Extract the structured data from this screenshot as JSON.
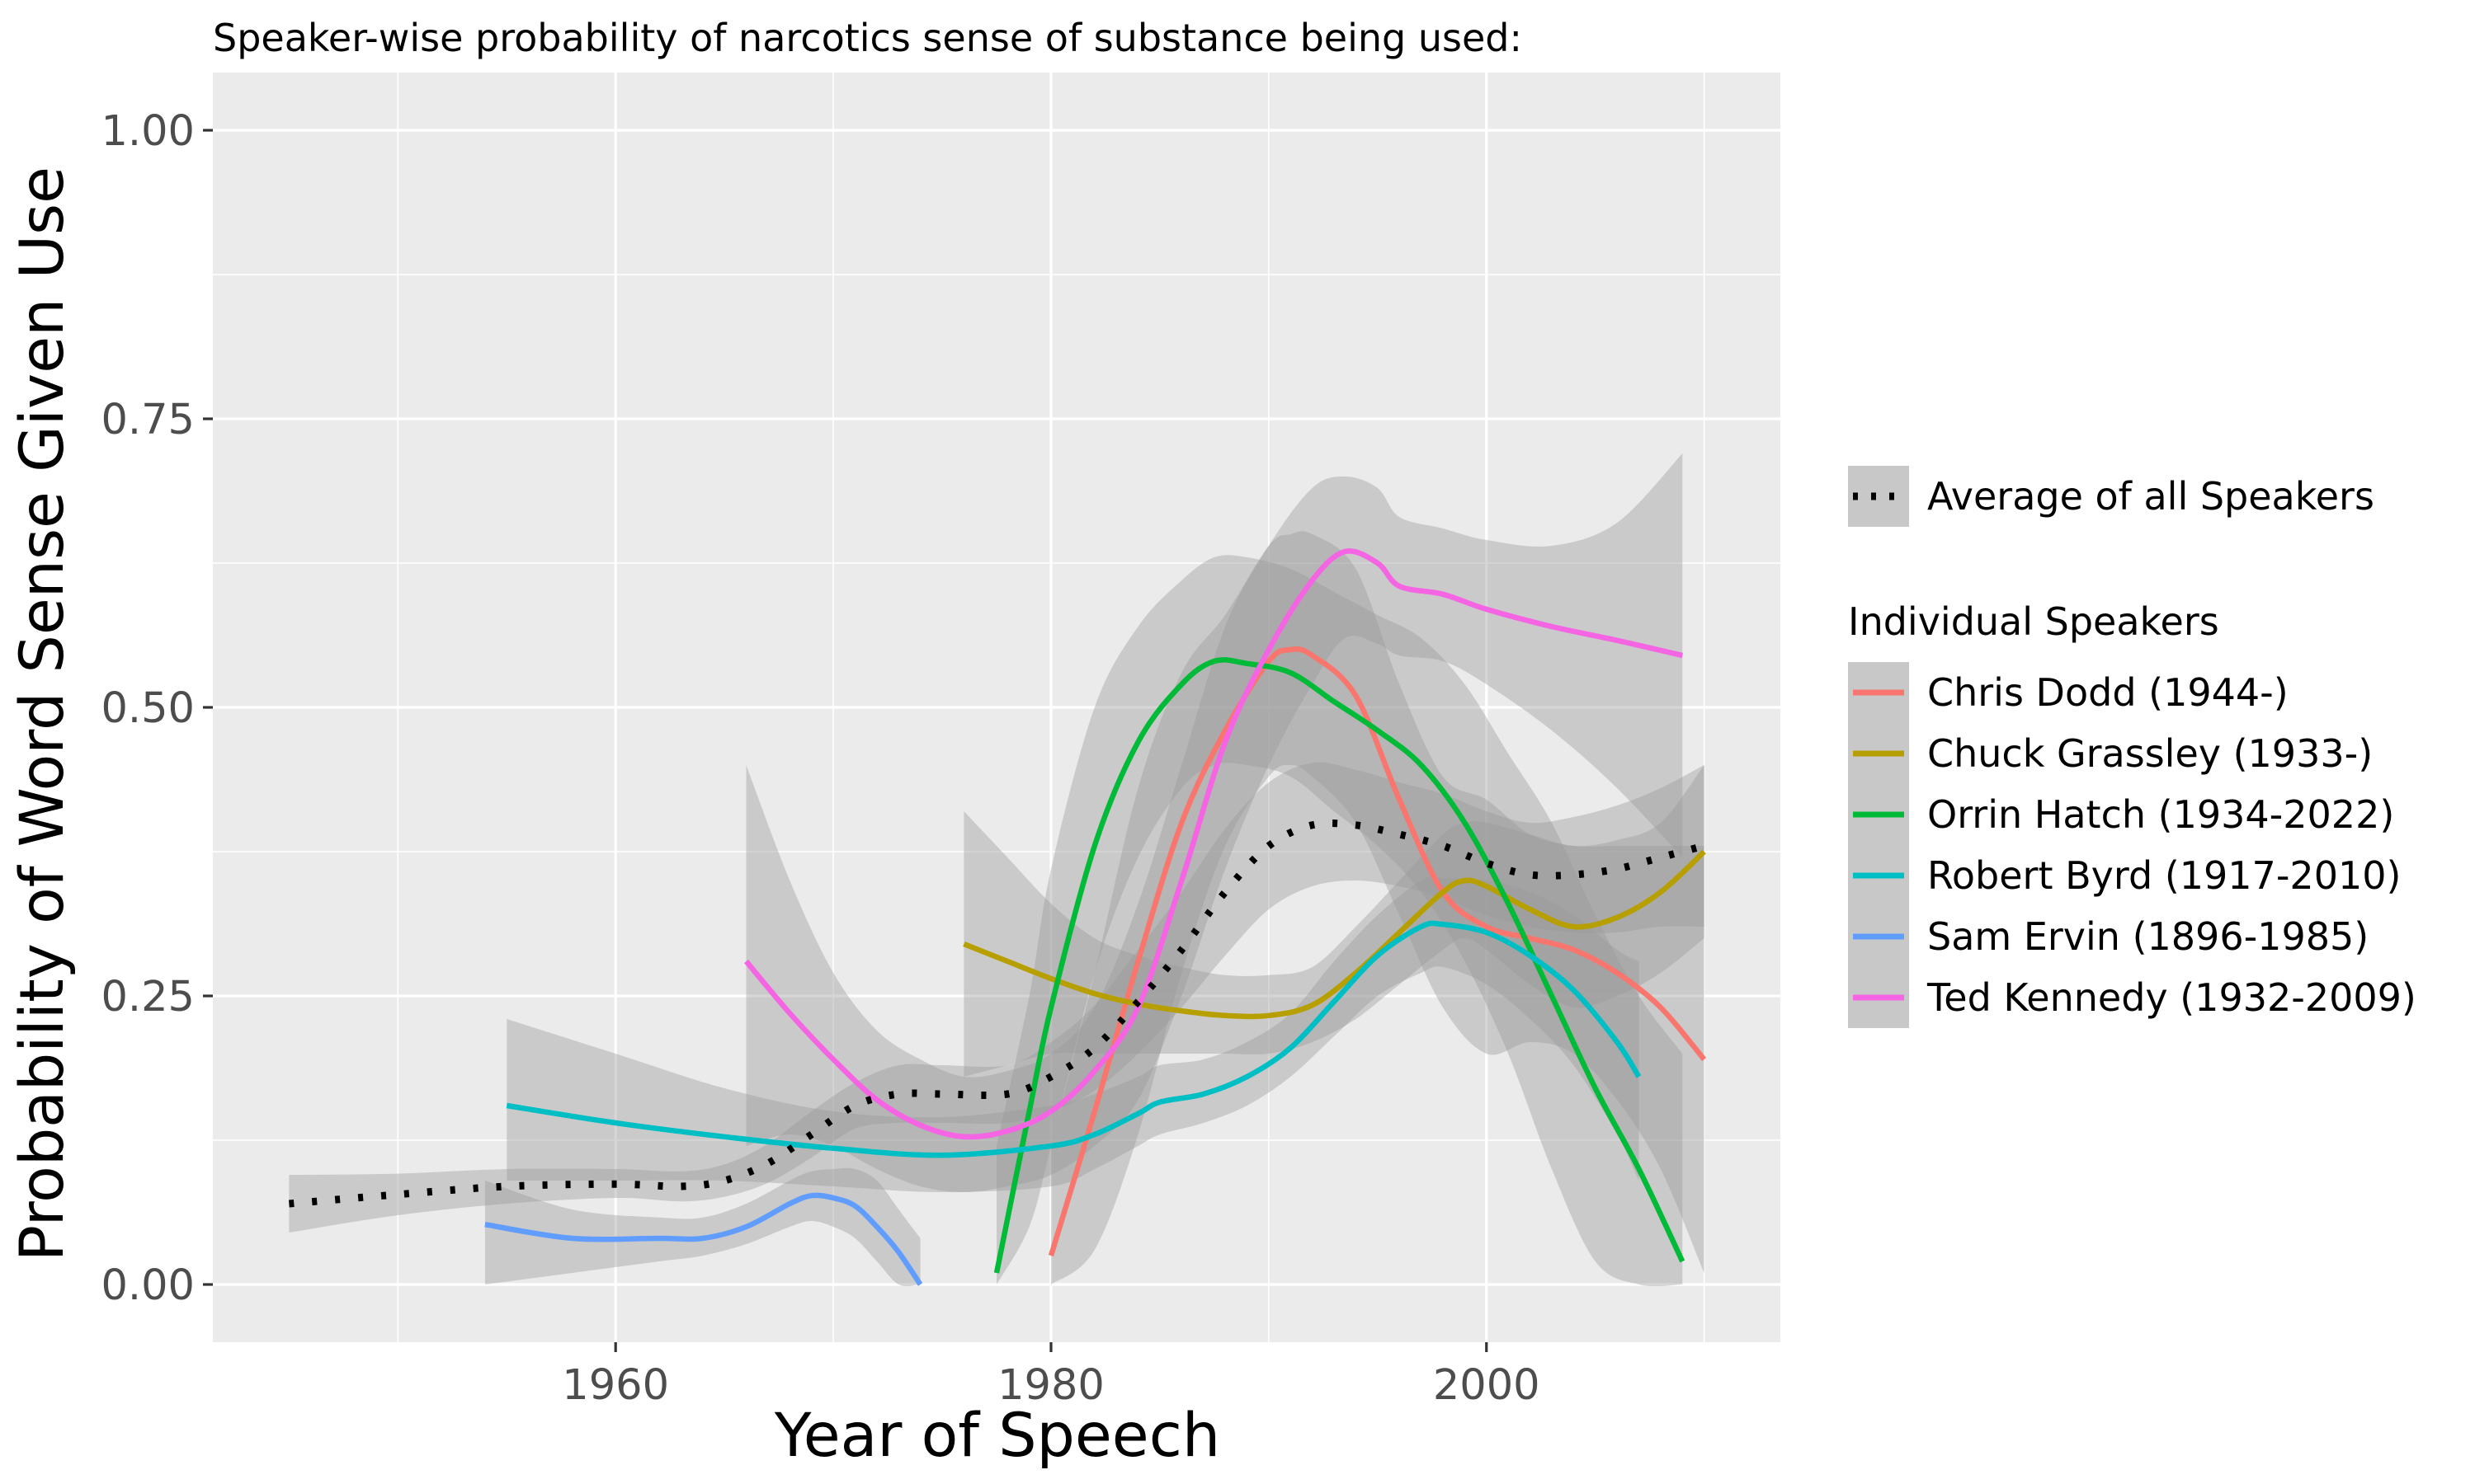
{
  "chart_data": {
    "type": "line",
    "title": "Speaker-wise probability of narcotics sense of substance being used:",
    "xlabel": "Year of Speech",
    "ylabel": "Probability of Word Sense Given Use",
    "xlim": [
      1941.5,
      2013.5
    ],
    "ylim": [
      -0.05,
      1.05
    ],
    "x_ticks": [
      1960,
      1980,
      2000
    ],
    "x_tick_labels": [
      "1960",
      "1980",
      "2000"
    ],
    "y_ticks": [
      0,
      0.25,
      0.5,
      0.75,
      1.0
    ],
    "y_tick_labels": [
      "0.00",
      "0.25",
      "0.50",
      "0.75",
      "1.00"
    ],
    "grid": true,
    "legend_position": "right",
    "legend": {
      "average_label": "Average of all Speakers",
      "individual_title": "Individual Speakers"
    },
    "average": {
      "name": "Average of all Speakers",
      "color": "#000000",
      "x": [
        1945,
        1950,
        1955,
        1960,
        1963,
        1965,
        1967,
        1969,
        1971,
        1973,
        1975,
        1978,
        1980,
        1982,
        1984,
        1986,
        1988,
        1990,
        1992,
        1994,
        1996,
        1998,
        2000,
        2002,
        2004,
        2006,
        2008,
        2010
      ],
      "y": [
        0.07,
        0.078,
        0.085,
        0.087,
        0.085,
        0.09,
        0.105,
        0.13,
        0.155,
        0.165,
        0.165,
        0.165,
        0.18,
        0.205,
        0.245,
        0.29,
        0.34,
        0.38,
        0.398,
        0.398,
        0.39,
        0.38,
        0.365,
        0.355,
        0.355,
        0.36,
        0.37,
        0.38
      ],
      "band_lower": [
        0.045,
        0.06,
        0.07,
        0.075,
        0.072,
        0.076,
        0.088,
        0.11,
        0.135,
        0.14,
        0.14,
        0.14,
        0.15,
        0.168,
        0.2,
        0.24,
        0.285,
        0.325,
        0.345,
        0.35,
        0.345,
        0.335,
        0.32,
        0.31,
        0.305,
        0.305,
        0.31,
        0.31
      ],
      "band_upper": [
        0.095,
        0.096,
        0.1,
        0.1,
        0.098,
        0.104,
        0.122,
        0.15,
        0.175,
        0.19,
        0.19,
        0.19,
        0.21,
        0.242,
        0.29,
        0.34,
        0.395,
        0.435,
        0.452,
        0.446,
        0.435,
        0.425,
        0.41,
        0.4,
        0.405,
        0.415,
        0.43,
        0.45
      ]
    },
    "series": [
      {
        "name": "Chris Dodd (1944-)",
        "color": "#F8766D",
        "x": [
          1980,
          1982,
          1984,
          1986,
          1988,
          1990,
          1991,
          1992,
          1994,
          1996,
          1998,
          2000,
          2002,
          2004,
          2006,
          2008,
          2010
        ],
        "y": [
          0.025,
          0.15,
          0.28,
          0.4,
          0.48,
          0.54,
          0.55,
          0.545,
          0.51,
          0.42,
          0.34,
          0.31,
          0.3,
          0.29,
          0.27,
          0.24,
          0.195
        ],
        "band_lower": [
          0.0,
          0.03,
          0.13,
          0.27,
          0.38,
          0.44,
          0.45,
          0.44,
          0.4,
          0.32,
          0.24,
          0.2,
          0.21,
          0.2,
          0.16,
          0.1,
          0.01
        ],
        "band_upper": [
          0.12,
          0.27,
          0.43,
          0.53,
          0.58,
          0.64,
          0.65,
          0.65,
          0.62,
          0.52,
          0.44,
          0.42,
          0.39,
          0.38,
          0.38,
          0.38,
          0.38
        ]
      },
      {
        "name": "Chuck Grassley (1933-)",
        "color": "#B79F00",
        "x": [
          1976,
          1978,
          1980,
          1982,
          1984,
          1986,
          1988,
          1990,
          1992,
          1994,
          1996,
          1998,
          1999,
          2000,
          2002,
          2004,
          2006,
          2008,
          2010
        ],
        "y": [
          0.295,
          0.28,
          0.265,
          0.252,
          0.243,
          0.237,
          0.233,
          0.233,
          0.242,
          0.27,
          0.305,
          0.34,
          0.35,
          0.345,
          0.325,
          0.31,
          0.318,
          0.34,
          0.375
        ],
        "band_lower": [
          0.18,
          0.19,
          0.2,
          0.2,
          0.2,
          0.2,
          0.2,
          0.2,
          0.21,
          0.23,
          0.26,
          0.29,
          0.3,
          0.29,
          0.26,
          0.24,
          0.25,
          0.27,
          0.3
        ],
        "band_upper": [
          0.41,
          0.37,
          0.33,
          0.3,
          0.285,
          0.275,
          0.268,
          0.268,
          0.275,
          0.31,
          0.35,
          0.39,
          0.4,
          0.4,
          0.39,
          0.38,
          0.385,
          0.4,
          0.45
        ]
      },
      {
        "name": "Orrin Hatch (1934-2022)",
        "color": "#00BA38",
        "x": [
          1977.5,
          1979,
          1980,
          1982,
          1984,
          1986,
          1987.5,
          1989,
          1991,
          1993,
          1995,
          1997,
          1999,
          2001,
          2003,
          2005,
          2007,
          2009
        ],
        "y": [
          0.01,
          0.15,
          0.24,
          0.38,
          0.47,
          0.52,
          0.54,
          0.538,
          0.53,
          0.505,
          0.48,
          0.45,
          0.4,
          0.33,
          0.25,
          0.17,
          0.1,
          0.02
        ],
        "band_lower": [
          0.0,
          0.05,
          0.12,
          0.27,
          0.37,
          0.43,
          0.45,
          0.45,
          0.44,
          0.41,
          0.38,
          0.34,
          0.28,
          0.2,
          0.1,
          0.02,
          0.0,
          0.0
        ],
        "band_upper": [
          0.12,
          0.25,
          0.36,
          0.5,
          0.57,
          0.61,
          0.63,
          0.63,
          0.62,
          0.6,
          0.58,
          0.56,
          0.52,
          0.46,
          0.4,
          0.32,
          0.25,
          0.2
        ]
      },
      {
        "name": "Robert Byrd (1917-2010)",
        "color": "#00BFC4",
        "x": [
          1955,
          1960,
          1965,
          1970,
          1975,
          1980,
          1982,
          1984,
          1985,
          1987,
          1989,
          1991,
          1993,
          1995,
          1997,
          1998,
          2000,
          2002,
          2004,
          2006,
          2007
        ],
        "y": [
          0.155,
          0.14,
          0.128,
          0.118,
          0.112,
          0.12,
          0.13,
          0.148,
          0.158,
          0.165,
          0.18,
          0.205,
          0.245,
          0.285,
          0.31,
          0.312,
          0.305,
          0.285,
          0.255,
          0.21,
          0.18
        ],
        "band_lower": [
          0.09,
          0.09,
          0.09,
          0.085,
          0.08,
          0.085,
          0.1,
          0.12,
          0.13,
          0.14,
          0.155,
          0.18,
          0.215,
          0.25,
          0.27,
          0.275,
          0.26,
          0.23,
          0.19,
          0.13,
          0.09
        ],
        "band_upper": [
          0.23,
          0.2,
          0.17,
          0.15,
          0.145,
          0.155,
          0.165,
          0.18,
          0.19,
          0.195,
          0.21,
          0.235,
          0.28,
          0.32,
          0.35,
          0.352,
          0.35,
          0.34,
          0.32,
          0.29,
          0.28
        ]
      },
      {
        "name": "Sam Ervin (1896-1985)",
        "color": "#619CFF",
        "x": [
          1954,
          1958,
          1962,
          1964,
          1966,
          1968,
          1969,
          1970,
          1971,
          1972,
          1973,
          1974
        ],
        "y": [
          0.052,
          0.04,
          0.04,
          0.04,
          0.05,
          0.07,
          0.077,
          0.075,
          0.068,
          0.05,
          0.028,
          0.0
        ],
        "band_lower": [
          0.0,
          0.01,
          0.02,
          0.025,
          0.035,
          0.05,
          0.055,
          0.05,
          0.04,
          0.02,
          0.0,
          0.0
        ],
        "band_upper": [
          0.09,
          0.065,
          0.058,
          0.058,
          0.07,
          0.09,
          0.098,
          0.1,
          0.1,
          0.09,
          0.065,
          0.04
        ]
      },
      {
        "name": "Ted Kennedy (1932-2009)",
        "color": "#F564E3",
        "x": [
          1966,
          1968,
          1970,
          1972,
          1974,
          1976,
          1978,
          1980,
          1982,
          1984,
          1986,
          1988,
          1990,
          1992,
          1993.5,
          1995,
          1996,
          1998,
          2000,
          2003,
          2006,
          2009
        ],
        "y": [
          0.28,
          0.235,
          0.195,
          0.16,
          0.138,
          0.128,
          0.133,
          0.15,
          0.185,
          0.24,
          0.35,
          0.47,
          0.55,
          0.61,
          0.635,
          0.625,
          0.605,
          0.598,
          0.585,
          0.57,
          0.558,
          0.545
        ],
        "band_lower": [
          0.12,
          0.13,
          0.12,
          0.1,
          0.085,
          0.08,
          0.085,
          0.095,
          0.12,
          0.16,
          0.25,
          0.36,
          0.45,
          0.52,
          0.56,
          0.555,
          0.545,
          0.54,
          0.52,
          0.48,
          0.43,
          0.37
        ],
        "band_upper": [
          0.45,
          0.35,
          0.27,
          0.22,
          0.195,
          0.18,
          0.185,
          0.2,
          0.24,
          0.33,
          0.45,
          0.57,
          0.64,
          0.69,
          0.7,
          0.69,
          0.665,
          0.655,
          0.645,
          0.64,
          0.66,
          0.72
        ]
      }
    ]
  }
}
